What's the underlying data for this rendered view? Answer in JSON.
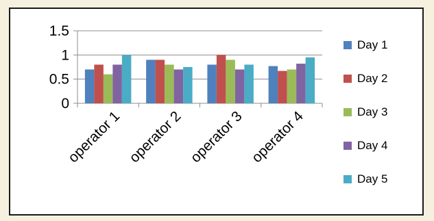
{
  "chart_data": {
    "type": "bar",
    "categories": [
      "operator 1",
      "operator 2",
      "operator 3",
      "operator 4"
    ],
    "series": [
      {
        "name": "Day 1",
        "color": "#4f81bd",
        "values": [
          0.7,
          0.9,
          0.8,
          0.77
        ]
      },
      {
        "name": "Day 2",
        "color": "#c0504d",
        "values": [
          0.8,
          0.9,
          1.0,
          0.67
        ]
      },
      {
        "name": "Day 3",
        "color": "#9bbb59",
        "values": [
          0.6,
          0.8,
          0.9,
          0.7
        ]
      },
      {
        "name": "Day 4",
        "color": "#8064a2",
        "values": [
          0.8,
          0.7,
          0.7,
          0.82
        ]
      },
      {
        "name": "Day 5",
        "color": "#4bacc6",
        "values": [
          1.0,
          0.75,
          0.8,
          0.95
        ]
      }
    ],
    "yticks": [
      "0",
      "0.5",
      "1",
      "1.5"
    ],
    "ylim": [
      0,
      1.5
    ],
    "grid": true,
    "legend": "right",
    "title": "",
    "xlabel": "",
    "ylabel": ""
  }
}
